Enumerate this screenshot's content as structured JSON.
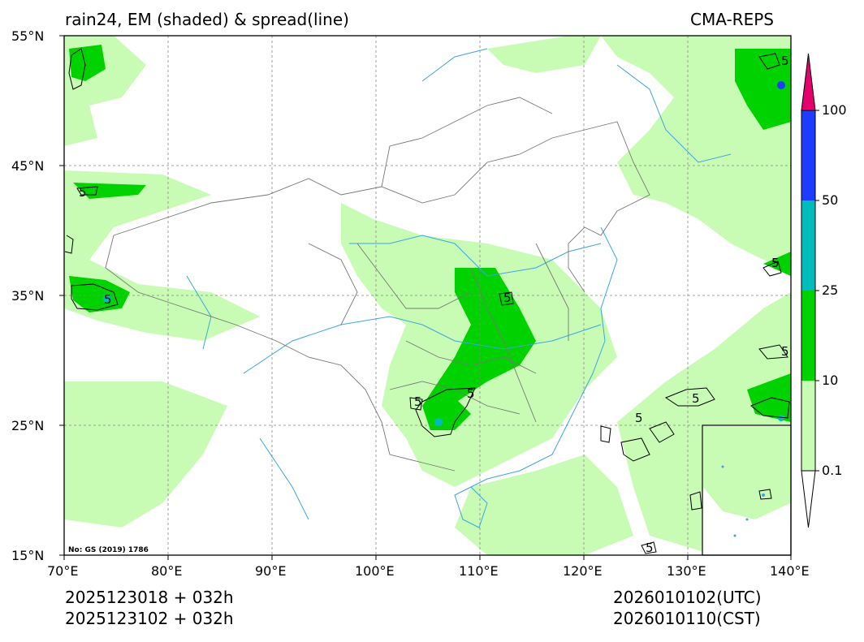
{
  "header": {
    "left_title": "rain24, EM (shaded) & spread(line)",
    "right_title": "CMA-REPS"
  },
  "map": {
    "lat_labels": [
      "55°N",
      "45°N",
      "35°N",
      "25°N",
      "15°N"
    ],
    "lon_labels": [
      "70°E",
      "80°E",
      "90°E",
      "100°E",
      "110°E",
      "120°E",
      "130°E",
      "140°E"
    ],
    "spread_contour_label": "5",
    "approval_number": "No: GS (2019) 1786"
  },
  "colorbar": {
    "levels": [
      "0.1",
      "10",
      "25",
      "50",
      "100"
    ],
    "colors": [
      "#ffffff",
      "#c8fcb4",
      "#00d200",
      "#00bcbc",
      "#1e3cff",
      "#e6006e"
    ]
  },
  "footer": {
    "init_utc": "2025123018  +  032h",
    "init_cst": "2025123102  +  032h",
    "valid_utc": "2026010102(UTC)",
    "valid_cst": "2026010110(CST)"
  }
}
